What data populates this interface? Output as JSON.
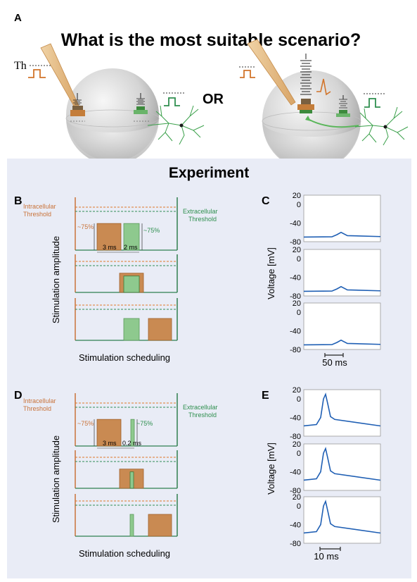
{
  "panel_a": {
    "letter": "A",
    "question": "What is the most suitable scenario?",
    "th_label": "Th",
    "or_label": "OR"
  },
  "experiment": {
    "title": "Experiment"
  },
  "panel_b": {
    "letter": "B",
    "intracellular_label_1": "Intracellular",
    "intracellular_label_2": "Threshold",
    "extracellular_label_1": "Extracellular",
    "extracellular_label_2": "Threshold",
    "pct_orange": "~75%",
    "pct_green": "~75%",
    "dur_orange": "3 ms",
    "dur_green": "2 ms",
    "ylabel": "Stimulation amplitude",
    "xlabel": "Stimulation scheduling"
  },
  "panel_d": {
    "letter": "D",
    "intracellular_label_1": "Intracellular",
    "intracellular_label_2": "Threshold",
    "extracellular_label_1": "Extracellular",
    "extracellular_label_2": "Threshold",
    "pct_orange": "~75%",
    "pct_green": "~75%",
    "dur_orange": "3 ms",
    "dur_green": "0.2 ms",
    "ylabel": "Stimulation amplitude",
    "xlabel": "Stimulation scheduling"
  },
  "panel_c": {
    "letter": "C",
    "ylabel": "Voltage [mV]",
    "ticks": [
      "20",
      "0",
      "-40",
      "-80"
    ],
    "scale_label": "50 ms"
  },
  "panel_e": {
    "letter": "E",
    "ylabel": "Voltage [mV]",
    "ticks": [
      "20",
      "0",
      "-40",
      "-80"
    ],
    "scale_label": "10 ms"
  },
  "colors": {
    "orange": "#c98a52",
    "orange_line": "#e0782a",
    "green": "#8ec98e",
    "green_line": "#2e8b57",
    "trace": "#1f5fb4",
    "panel_bg": "#e8ebf5"
  }
}
